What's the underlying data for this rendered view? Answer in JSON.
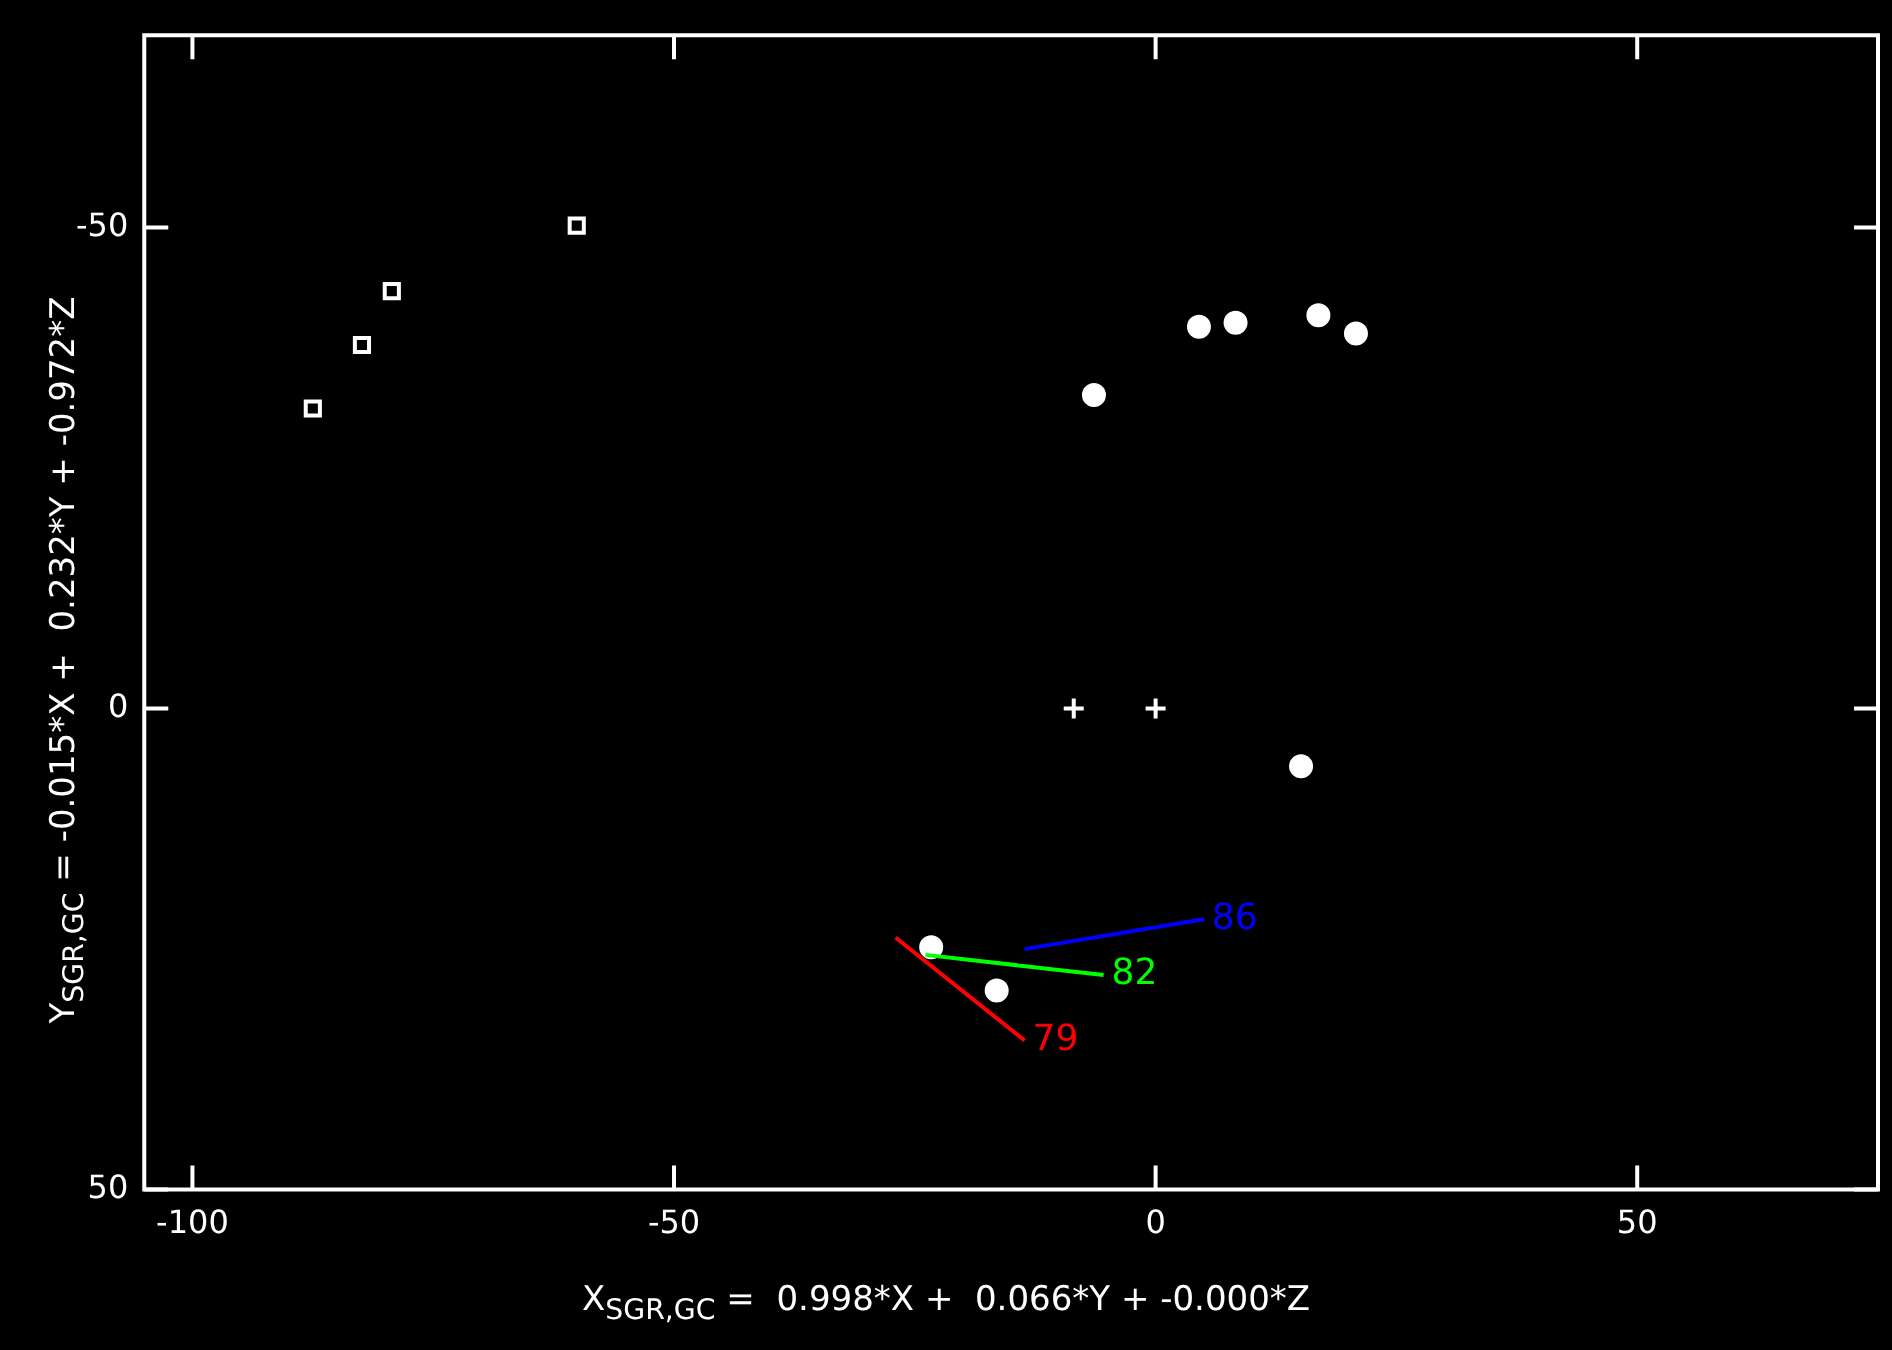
{
  "chart_data": {
    "type": "scatter",
    "xlabel": "X$_{SGR,GC}$ =  0.998*X +  0.066*Y + -0.000*Z",
    "ylabel": "Y$_{SGR,GC}$ = -0.015*X +  0.232*Y + -0.972*Z",
    "xlim": [
      -105,
      75
    ],
    "ylim": [
      50,
      -70
    ],
    "xticks": [
      -100,
      -50,
      0,
      50
    ],
    "yticks": [
      -50,
      0,
      50
    ],
    "grid": false,
    "legend": false,
    "series": [
      {
        "marker": "square",
        "color": "#ffffff",
        "x": [
          -60.1,
          -79.3,
          -82.4,
          -87.5
        ],
        "values": [
          -50.2,
          -43.4,
          -37.8,
          -31.2
        ]
      },
      {
        "marker": "circle",
        "color": "#ffffff",
        "x": [
          -6.4,
          4.5,
          8.3,
          16.9,
          20.8
        ],
        "values": [
          -32.6,
          -39.7,
          -40.1,
          -40.9,
          -39.0
        ]
      },
      {
        "marker": "cross",
        "color": "#ffffff",
        "x": [
          -8.5
        ],
        "values": [
          0
        ]
      },
      {
        "marker": "cross",
        "color": "#ffffff",
        "x": [
          0
        ],
        "values": [
          0
        ]
      },
      {
        "marker": "circle",
        "color": "#ffffff",
        "x": [
          15.1,
          -23.3,
          -16.5
        ],
        "values": [
          6.0,
          24.8,
          29.3
        ]
      },
      {
        "type": "line",
        "name": "79",
        "color": "#ff0000",
        "x": [
          -27.0,
          -13.6
        ],
        "values": [
          23.8,
          34.5
        ]
      },
      {
        "type": "line",
        "name": "82",
        "color": "#00ff00",
        "x": [
          -23.9,
          -5.4
        ],
        "values": [
          25.6,
          27.7
        ]
      },
      {
        "type": "line",
        "name": "86",
        "color": "#0000ff",
        "x": [
          -13.6,
          5.0
        ],
        "values": [
          25.0,
          21.9
        ]
      }
    ]
  }
}
